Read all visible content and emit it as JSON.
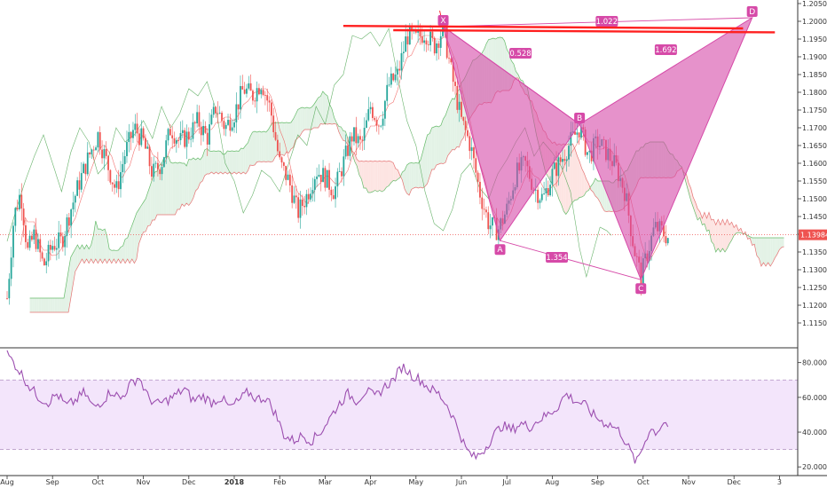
{
  "chart_data": [
    {
      "type": "candlestick",
      "instrument_note": "",
      "ylim": [
        1.108,
        1.206
      ],
      "y_ticks": [
        "1.20500",
        "1.20000",
        "1.19500",
        "1.19000",
        "1.18500",
        "1.18000",
        "1.17500",
        "1.17000",
        "1.16500",
        "1.16000",
        "1.15500",
        "1.15000",
        "1.14500",
        "1.14000",
        "1.13500",
        "1.13000",
        "1.12500",
        "1.12000",
        "1.11500"
      ],
      "x_labels": [
        "Aug",
        "Sep",
        "Oct",
        "Nov",
        "Dec",
        "2018",
        "Feb",
        "Mar",
        "Apr",
        "May",
        "Jun",
        "Jul",
        "Aug",
        "Sep",
        "Oct",
        "Nov",
        "Dec",
        "3"
      ],
      "x_label_months_index": [
        0,
        1,
        2,
        3,
        4,
        5,
        6,
        7,
        8,
        9,
        10,
        11,
        12,
        13,
        14,
        15,
        16,
        17
      ],
      "last_price": "1.13984",
      "last_price_value": 1.13984,
      "colors": {
        "up": "#26a69a",
        "down": "#ef5350",
        "pattern": "#d64aa8",
        "resistance": "#ff2020",
        "rsi": "#9c4fb0",
        "rsi_band": "#f3e5fb",
        "kumo_bull": "#e3f2e6",
        "kumo_bear": "#fde4e2"
      },
      "resistance_level": 1.1975,
      "harmonic_pattern": {
        "points": [
          {
            "label": "X",
            "month": 9.6,
            "price": 1.1985
          },
          {
            "label": "A",
            "month": 10.85,
            "price": 1.1382
          },
          {
            "label": "B",
            "month": 12.6,
            "price": 1.171
          },
          {
            "label": "C",
            "month": 13.95,
            "price": 1.1272
          },
          {
            "label": "D",
            "month": 16.4,
            "price": 1.201
          }
        ],
        "ratios": [
          {
            "text": "1.022",
            "month": 13.2,
            "price": 1.2
          },
          {
            "text": "0.528",
            "month": 11.3,
            "price": 1.191
          },
          {
            "text": "1.692",
            "month": 14.5,
            "price": 1.192
          },
          {
            "text": "1.354",
            "month": 12.1,
            "price": 1.1335
          }
        ]
      },
      "price_path": [
        [
          0.0,
          1.122
        ],
        [
          0.15,
          1.145
        ],
        [
          0.3,
          1.152
        ],
        [
          0.45,
          1.135
        ],
        [
          0.6,
          1.14
        ],
        [
          0.8,
          1.131
        ],
        [
          1.0,
          1.137
        ],
        [
          1.2,
          1.138
        ],
        [
          1.4,
          1.147
        ],
        [
          1.6,
          1.155
        ],
        [
          1.8,
          1.162
        ],
        [
          2.0,
          1.168
        ],
        [
          2.2,
          1.16
        ],
        [
          2.4,
          1.152
        ],
        [
          2.6,
          1.163
        ],
        [
          2.8,
          1.17
        ],
        [
          3.0,
          1.166
        ],
        [
          3.2,
          1.157
        ],
        [
          3.4,
          1.16
        ],
        [
          3.6,
          1.17
        ],
        [
          3.8,
          1.166
        ],
        [
          4.0,
          1.168
        ],
        [
          4.2,
          1.172
        ],
        [
          4.4,
          1.167
        ],
        [
          4.6,
          1.176
        ],
        [
          4.8,
          1.17
        ],
        [
          5.0,
          1.174
        ],
        [
          5.2,
          1.181
        ],
        [
          5.4,
          1.179
        ],
        [
          5.6,
          1.183
        ],
        [
          5.8,
          1.175
        ],
        [
          6.0,
          1.16
        ],
        [
          6.2,
          1.155
        ],
        [
          6.4,
          1.146
        ],
        [
          6.6,
          1.151
        ],
        [
          6.8,
          1.158
        ],
        [
          7.0,
          1.156
        ],
        [
          7.2,
          1.152
        ],
        [
          7.4,
          1.16
        ],
        [
          7.6,
          1.168
        ],
        [
          7.8,
          1.165
        ],
        [
          8.0,
          1.176
        ],
        [
          8.2,
          1.171
        ],
        [
          8.4,
          1.182
        ],
        [
          8.6,
          1.185
        ],
        [
          8.8,
          1.196
        ],
        [
          9.0,
          1.195
        ],
        [
          9.2,
          1.197
        ],
        [
          9.4,
          1.193
        ],
        [
          9.6,
          1.198
        ],
        [
          9.8,
          1.184
        ],
        [
          10.0,
          1.172
        ],
        [
          10.2,
          1.165
        ],
        [
          10.4,
          1.152
        ],
        [
          10.6,
          1.143
        ],
        [
          10.8,
          1.141
        ],
        [
          11.0,
          1.147
        ],
        [
          11.2,
          1.157
        ],
        [
          11.4,
          1.16
        ],
        [
          11.6,
          1.153
        ],
        [
          11.8,
          1.15
        ],
        [
          12.0,
          1.157
        ],
        [
          12.2,
          1.161
        ],
        [
          12.4,
          1.166
        ],
        [
          12.6,
          1.17
        ],
        [
          12.8,
          1.162
        ],
        [
          13.0,
          1.166
        ],
        [
          13.2,
          1.163
        ],
        [
          13.4,
          1.159
        ],
        [
          13.6,
          1.152
        ],
        [
          13.8,
          1.136
        ],
        [
          13.95,
          1.128
        ],
        [
          14.1,
          1.135
        ],
        [
          14.25,
          1.142
        ],
        [
          14.4,
          1.141
        ],
        [
          14.55,
          1.139
        ]
      ]
    },
    {
      "type": "line",
      "title": "",
      "ylim": [
        15,
        88
      ],
      "y_ticks": [
        "80.0000",
        "60.0000",
        "40.0000",
        "20.0000"
      ],
      "band": [
        30,
        70
      ],
      "rsi_path": [
        [
          0.0,
          85
        ],
        [
          0.2,
          78
        ],
        [
          0.35,
          72
        ],
        [
          0.5,
          66
        ],
        [
          0.7,
          60
        ],
        [
          0.9,
          57
        ],
        [
          1.1,
          62
        ],
        [
          1.3,
          55
        ],
        [
          1.5,
          58
        ],
        [
          1.7,
          63
        ],
        [
          1.9,
          54
        ],
        [
          2.1,
          58
        ],
        [
          2.3,
          64
        ],
        [
          2.5,
          59
        ],
        [
          2.7,
          67
        ],
        [
          2.9,
          72
        ],
        [
          3.1,
          60
        ],
        [
          3.3,
          56
        ],
        [
          3.5,
          58
        ],
        [
          3.7,
          61
        ],
        [
          3.9,
          65
        ],
        [
          4.1,
          58
        ],
        [
          4.3,
          61
        ],
        [
          4.5,
          57
        ],
        [
          4.7,
          60
        ],
        [
          4.9,
          54
        ],
        [
          5.1,
          58
        ],
        [
          5.3,
          63
        ],
        [
          5.5,
          59
        ],
        [
          5.7,
          60
        ],
        [
          5.9,
          51
        ],
        [
          6.1,
          38
        ],
        [
          6.3,
          35
        ],
        [
          6.5,
          38
        ],
        [
          6.7,
          35
        ],
        [
          6.9,
          40
        ],
        [
          7.1,
          48
        ],
        [
          7.3,
          56
        ],
        [
          7.5,
          62
        ],
        [
          7.7,
          58
        ],
        [
          7.9,
          64
        ],
        [
          8.1,
          60
        ],
        [
          8.3,
          66
        ],
        [
          8.5,
          70
        ],
        [
          8.7,
          78
        ],
        [
          8.9,
          73
        ],
        [
          9.1,
          70
        ],
        [
          9.3,
          65
        ],
        [
          9.5,
          62
        ],
        [
          9.7,
          55
        ],
        [
          9.9,
          44
        ],
        [
          10.1,
          30
        ],
        [
          10.3,
          25
        ],
        [
          10.5,
          30
        ],
        [
          10.7,
          38
        ],
        [
          10.9,
          44
        ],
        [
          11.1,
          41
        ],
        [
          11.3,
          45
        ],
        [
          11.5,
          43
        ],
        [
          11.7,
          47
        ],
        [
          11.9,
          50
        ],
        [
          12.1,
          54
        ],
        [
          12.3,
          62
        ],
        [
          12.5,
          58
        ],
        [
          12.7,
          56
        ],
        [
          12.9,
          50
        ],
        [
          13.1,
          46
        ],
        [
          13.3,
          44
        ],
        [
          13.5,
          40
        ],
        [
          13.7,
          30
        ],
        [
          13.85,
          22
        ],
        [
          14.0,
          32
        ],
        [
          14.15,
          42
        ],
        [
          14.3,
          40
        ],
        [
          14.45,
          46
        ],
        [
          14.55,
          44
        ]
      ]
    }
  ]
}
